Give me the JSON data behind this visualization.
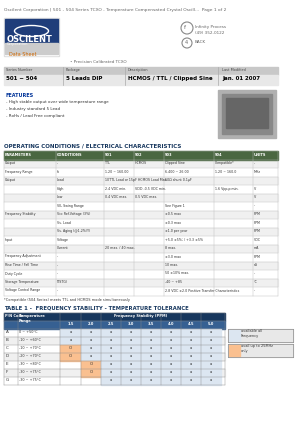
{
  "page_title": "Oscilent Corporation | 501 - 504 Series TCXO - Temperature Compensated Crystal Oscill...  Page 1 of 2",
  "company": "OSCILENT",
  "subtitle": "Data Sheet",
  "product_label": "Precision Calibrated TCXO",
  "series_number": "501 ~ 504",
  "package": "5 Leads DIP",
  "description": "HCMOS / TTL / Clipped Sine",
  "last_modified": "Jan. 01 2007",
  "features_title": "FEATURES",
  "features": [
    "- High stable output over wide temperature range",
    "- Industry standard 5 Lead",
    "- RoHs / Lead Free compliant"
  ],
  "op_cond_title": "OPERATING CONDITIONS / ELECTRICAL CHARACTERISTICS",
  "op_table_headers": [
    "PARAMETERS",
    "CONDITIONS",
    "501",
    "502",
    "503",
    "504",
    "UNITS"
  ],
  "op_rows": [
    [
      "Output",
      "-",
      "TTL",
      "HCMOS",
      "Clipped Sine",
      "Compatible*",
      "-"
    ],
    [
      "Frequency Range",
      "fo",
      "1.20 ~ 160.00",
      "",
      "6.400 ~ 26.00",
      "1.20 ~ 160.0",
      "MHz"
    ],
    [
      "Output",
      "Load",
      "10TTL Load or 15pF HCMOS Load Max.",
      "",
      "50Ω shunt 0.1µF",
      "",
      ""
    ],
    [
      "",
      "High",
      "2.4 VDC min.",
      "VDD -0.5 VDC min.",
      "",
      "1.6 Vpp-p min.",
      "V"
    ],
    [
      "",
      "Low",
      "0.4 VDC max.",
      "0.5 VDC max.",
      "",
      "",
      "V"
    ],
    [
      "",
      "VIL Swing Range",
      "",
      "",
      "See Figure 1",
      "",
      "-"
    ],
    [
      "Frequency Stability",
      "Vcc Ref.Voltage (3%)",
      "",
      "",
      "±0.5 max",
      "",
      "PPM"
    ],
    [
      "",
      "Vs. Load",
      "",
      "",
      "±0.3 max",
      "",
      "PPM"
    ],
    [
      "",
      "Vs. Aging (@1-2%/Y)",
      "",
      "",
      "±1.0 per year",
      "",
      "PPM"
    ],
    [
      "Input",
      "Voltage",
      "",
      "",
      "+5.0 ±5%; / +3.3 ±5%",
      "",
      "VDC"
    ],
    [
      "",
      "Current",
      "20 max. / 40 max.",
      "",
      "8 max.",
      "",
      "mA"
    ],
    [
      "Frequency Adjustment",
      "-",
      "",
      "",
      "±3.0 max",
      "",
      "PPM"
    ],
    [
      "Rise Time / Fall Time",
      "-",
      "",
      "",
      "10 max.",
      "",
      "nS"
    ],
    [
      "Duty Cycle",
      "-",
      "",
      "",
      "50 ±10% max.",
      "",
      "-"
    ],
    [
      "Storage Temperature",
      "(TSTG)",
      "",
      "",
      "-40 ~ +85",
      "",
      "°C"
    ],
    [
      "Voltage Control Range",
      "-",
      "",
      "",
      "2.8 VDC ±2.0 Positive Transfer Characteristics",
      "",
      "-"
    ]
  ],
  "footnote": "*Compatible (504 Series) meets TTL and HCMOS mode simultaneously",
  "table1_title": "TABLE 1 -  FREQUENCY STABILITY - TEMPERATURE TOLERANCE",
  "table1_col_header1": "P/N Code",
  "table1_col_header2": "Temperature\nRange",
  "table1_freq_header": "Frequency Stability (PPM)",
  "table1_freq_cols": [
    "1.5",
    "2.0",
    "2.5",
    "3.0",
    "3.5",
    "4.0",
    "4.5",
    "5.0"
  ],
  "table1_rows": [
    [
      "A",
      "0 ~ +50°C",
      "a",
      "a",
      "a",
      "a",
      "a",
      "a",
      "a",
      "a"
    ],
    [
      "B",
      "-10 ~ +60°C",
      "a",
      "a",
      "a",
      "a",
      "a",
      "a",
      "a",
      "a"
    ],
    [
      "C",
      "-10 ~ +70°C",
      "O",
      "a",
      "a",
      "a",
      "a",
      "a",
      "a",
      "a"
    ],
    [
      "D",
      "-20 ~ +70°C",
      "O",
      "a",
      "a",
      "a",
      "a",
      "a",
      "a",
      "a"
    ],
    [
      "E",
      "-30 ~ +80°C",
      "",
      "O",
      "a",
      "a",
      "a",
      "a",
      "a",
      "a"
    ],
    [
      "F",
      "-30 ~ +75°C",
      "",
      "O",
      "a",
      "a",
      "a",
      "a",
      "a",
      "a"
    ],
    [
      "G",
      "-30 ~ +75°C",
      "",
      "",
      "a",
      "a",
      "a",
      "a",
      "a",
      "a"
    ]
  ],
  "legend_blue_text": "available all\nFrequency",
  "legend_orange_text": "avail up to 25MHz\nonly",
  "bg_color": "#ffffff",
  "op_table_header_bg": "#4a6741",
  "table1_header_bg": "#17375e",
  "table1_subheader_bg": "#366092",
  "table1_cell_blue": "#dce6f1",
  "table1_cell_orange": "#fac090",
  "blue_mark": "#dce6f1",
  "orange_mark": "#fac090",
  "logo_blue": "#1f3d7a",
  "series_bar_top": "#c0c0c0",
  "series_bar_bot": "#d8d8d8"
}
